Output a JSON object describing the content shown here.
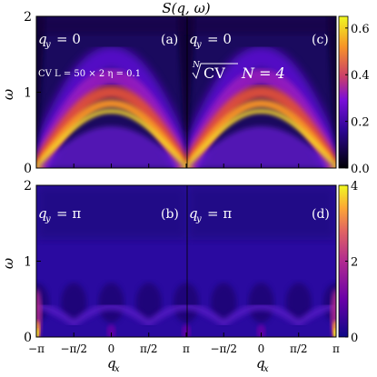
{
  "figure": {
    "title": "S(q, ω)",
    "ylabel": "ω",
    "xlabel": "q",
    "xlabel_sub": "x"
  },
  "chart_data": [
    {
      "type": "heatmap",
      "id": "a",
      "panel_label": "(a)",
      "qy_label": "q",
      "qy_value": "= 0",
      "annotation": "CV  L = 50 × 2  η = 0.1",
      "x_range": [
        -3.1416,
        0
      ],
      "y_range": [
        0,
        2
      ],
      "y_ticks": [
        "0",
        "1",
        "2"
      ],
      "x_ticks": [
        "−π",
        "−π/2",
        "0"
      ],
      "colormap": "plasma",
      "colorbar_range": [
        0,
        0.65
      ],
      "features": {
        "dispersion": "spinon continuum, peak near ω≈0.8 at q=±π/2",
        "gapless_at": [
          0,
          -3.1416,
          3.1416
        ]
      }
    },
    {
      "type": "heatmap",
      "id": "c",
      "panel_label": "(c)",
      "qy_label": "q",
      "qy_value": "= 0",
      "annotation": "CV",
      "annotation_root": "N",
      "annotation_tail": "N = 4",
      "x_range": [
        0,
        3.1416
      ],
      "y_range": [
        0,
        2
      ],
      "x_ticks": [
        "0",
        "π/2",
        "π"
      ],
      "colormap": "plasma"
    },
    {
      "type": "heatmap",
      "id": "b",
      "panel_label": "(b)",
      "qy_label": "q",
      "qy_value": "= π",
      "x_range": [
        -3.1416,
        0
      ],
      "y_range": [
        0,
        2
      ],
      "y_ticks": [
        "0",
        "1",
        "2"
      ],
      "x_ticks": [
        "−π",
        "−π/2",
        "0"
      ],
      "colormap": "plasma",
      "colorbar_range": [
        0,
        4
      ],
      "features": {
        "bright_spots_at": [
          -3.1416,
          3.1416
        ],
        "weak_arcs": true
      }
    },
    {
      "type": "heatmap",
      "id": "d",
      "panel_label": "(d)",
      "qy_label": "q",
      "qy_value": "= π",
      "x_range": [
        0,
        3.1416
      ],
      "y_range": [
        0,
        2
      ],
      "x_ticks": [
        "0",
        "π/2",
        "π"
      ],
      "colormap": "plasma"
    }
  ],
  "colorbars": [
    {
      "id": "top",
      "ticks": [
        "0.0",
        "0.2",
        "0.4",
        "0.6"
      ],
      "values": [
        0,
        0.2,
        0.4,
        0.6
      ],
      "max": 0.65
    },
    {
      "id": "bottom",
      "ticks": [
        "0",
        "2",
        "4"
      ],
      "values": [
        0,
        2,
        4
      ],
      "max": 4
    }
  ],
  "x_tick_labels": [
    "−π",
    "−π/2",
    "0",
    "π/2",
    "π",
    "−π/2",
    "0",
    "π/2",
    "π"
  ]
}
